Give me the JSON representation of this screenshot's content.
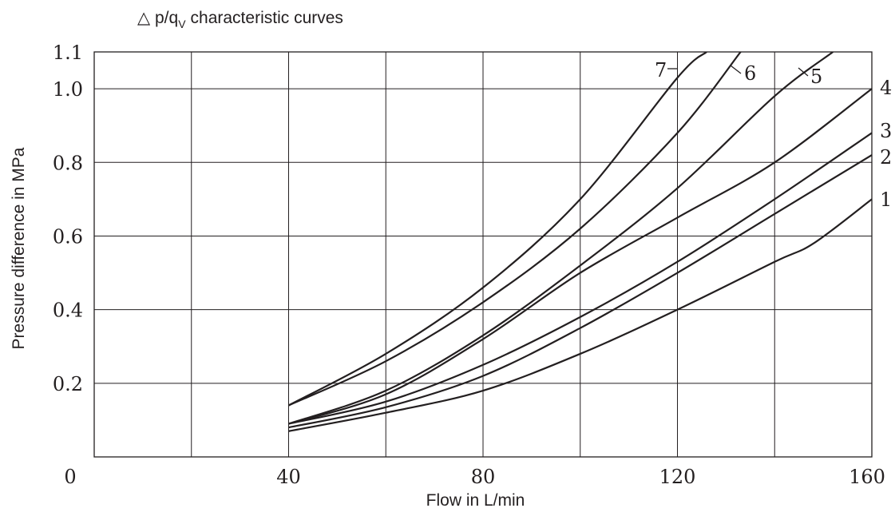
{
  "chart_data": {
    "type": "line",
    "title_prefix": "△ p/q",
    "title_sub": "V",
    "title_suffix": "characteristic curves",
    "xlabel": "Flow in L/min",
    "ylabel": "Pressure difference in MPa",
    "xlim": [
      0,
      160
    ],
    "ylim": [
      0,
      1.1
    ],
    "x_ticks": [
      0,
      40,
      80,
      120,
      160
    ],
    "x_tick_labels": [
      "0",
      "40",
      "80",
      "120",
      "160"
    ],
    "x_grid": [
      0,
      20,
      40,
      60,
      80,
      100,
      120,
      140,
      160
    ],
    "y_ticks": [
      0.2,
      0.4,
      0.6,
      0.8,
      1.0,
      1.1
    ],
    "y_tick_labels": [
      "0.2",
      "0.4",
      "0.6",
      "0.8",
      "1.0",
      "1.1"
    ],
    "grid": true,
    "series": [
      {
        "name": "1",
        "x": [
          40,
          60,
          80,
          100,
          120,
          140,
          148,
          160
        ],
        "y": [
          0.07,
          0.12,
          0.18,
          0.28,
          0.4,
          0.53,
          0.58,
          0.7
        ]
      },
      {
        "name": "2",
        "x": [
          40,
          60,
          80,
          100,
          120,
          140,
          160
        ],
        "y": [
          0.08,
          0.135,
          0.22,
          0.35,
          0.5,
          0.66,
          0.82
        ]
      },
      {
        "name": "3",
        "x": [
          40,
          60,
          80,
          100,
          120,
          140,
          160
        ],
        "y": [
          0.09,
          0.15,
          0.25,
          0.38,
          0.53,
          0.7,
          0.88
        ]
      },
      {
        "name": "4",
        "x": [
          40,
          60,
          80,
          100,
          120,
          140,
          160
        ],
        "y": [
          0.09,
          0.17,
          0.32,
          0.5,
          0.65,
          0.8,
          1.0
        ]
      },
      {
        "name": "5",
        "x": [
          40,
          60,
          80,
          100,
          120,
          140,
          152
        ],
        "y": [
          0.09,
          0.18,
          0.33,
          0.52,
          0.73,
          0.98,
          1.1
        ]
      },
      {
        "name": "6",
        "x": [
          40,
          60,
          80,
          100,
          120,
          133
        ],
        "y": [
          0.14,
          0.26,
          0.42,
          0.62,
          0.88,
          1.1
        ]
      },
      {
        "name": "7",
        "x": [
          40,
          60,
          80,
          100,
          120,
          126
        ],
        "y": [
          0.14,
          0.28,
          0.46,
          0.7,
          1.03,
          1.1
        ]
      }
    ]
  }
}
